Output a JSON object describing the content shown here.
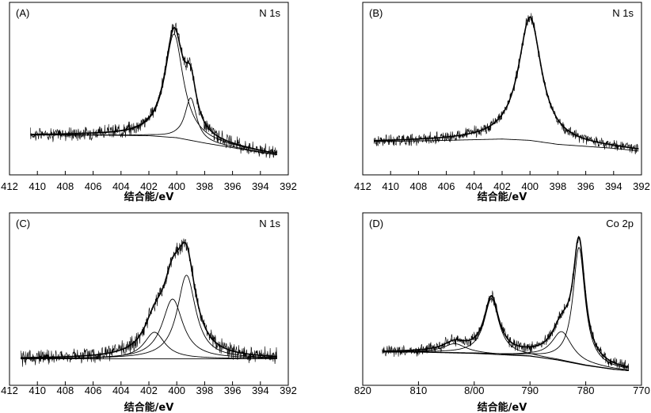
{
  "chart_data": [
    {
      "type": "line",
      "panel_label": "(A)",
      "title": "N 1s",
      "xlabel": "结合能/eV",
      "ylabel": "",
      "xlim": [
        412,
        392
      ],
      "xticks": [
        "412",
        "410",
        "408",
        "406",
        "404",
        "402",
        "400",
        "398",
        "396",
        "394",
        "392"
      ],
      "noise": 0.07,
      "data_range": [
        410.5,
        392.8
      ],
      "baseline": {
        "x": [
          410.5,
          406,
          402,
          400,
          398,
          394,
          392.8
        ],
        "y": [
          0.1,
          0.1,
          0.095,
          0.08,
          0.04,
          -0.03,
          -0.05
        ]
      },
      "series": [
        {
          "role": "component",
          "center": 400.2,
          "height": 0.78,
          "width": 0.8
        },
        {
          "role": "component",
          "center": 399.0,
          "height": 0.32,
          "width": 0.5
        }
      ],
      "ylim": [
        -0.2,
        1.1
      ]
    },
    {
      "type": "line",
      "panel_label": "(B)",
      "title": "N 1s",
      "xlabel": "结合能/eV",
      "ylabel": "",
      "xlim": [
        412,
        392
      ],
      "xticks": [
        "412",
        "410",
        "408",
        "406",
        "404",
        "402",
        "400",
        "398",
        "396",
        "394",
        "392"
      ],
      "noise": 0.06,
      "data_range": [
        411.2,
        392.2
      ],
      "baseline": {
        "x": [
          411.2,
          406,
          402,
          400,
          398,
          394,
          392.2
        ],
        "y": [
          0.05,
          0.06,
          0.07,
          0.06,
          0.03,
          0.0,
          -0.02
        ]
      },
      "series": [
        {
          "role": "component",
          "center": 400.0,
          "height": 0.93,
          "width": 1.0
        }
      ],
      "ylim": [
        -0.2,
        1.1
      ]
    },
    {
      "type": "line",
      "panel_label": "(C)",
      "title": "N 1s",
      "xlabel": "结合能/eV",
      "ylabel": "",
      "xlim": [
        412,
        392
      ],
      "xticks": [
        "412",
        "410",
        "408",
        "406",
        "404",
        "402",
        "400",
        "398",
        "396",
        "394",
        "392"
      ],
      "noise": 0.08,
      "data_range": [
        411.2,
        392.8
      ],
      "baseline": {
        "x": [
          411.2,
          406,
          402,
          400,
          398,
          394,
          392.8
        ],
        "y": [
          0.0,
          0.0,
          0.0,
          0.0,
          0.0,
          0.0,
          0.0
        ]
      },
      "series": [
        {
          "role": "component",
          "center": 401.6,
          "height": 0.2,
          "width": 0.9
        },
        {
          "role": "component",
          "center": 400.3,
          "height": 0.45,
          "width": 0.9
        },
        {
          "role": "component",
          "center": 399.3,
          "height": 0.63,
          "width": 0.8
        }
      ],
      "ylim": [
        -0.2,
        1.1
      ]
    },
    {
      "type": "line",
      "panel_label": "(D)",
      "title": "Co 2p",
      "xlabel": "结合能/eV",
      "ylabel": "",
      "xlim": [
        820,
        770
      ],
      "xticks": [
        "820",
        "810",
        "8/00",
        "790",
        "780",
        "770"
      ],
      "noise": 0.06,
      "data_range": [
        816.5,
        772.3
      ],
      "baseline": {
        "x": [
          816.5,
          810,
          800,
          790,
          785,
          780,
          775,
          772.3
        ],
        "y": [
          0.0,
          0.0,
          -0.01,
          -0.03,
          -0.06,
          -0.1,
          -0.13,
          -0.14
        ]
      },
      "series": [
        {
          "role": "component",
          "center": 796.9,
          "height": 0.42,
          "width": 1.6
        },
        {
          "role": "component",
          "center": 803.5,
          "height": 0.07,
          "width": 2.5
        },
        {
          "role": "component",
          "center": 784.3,
          "height": 0.22,
          "width": 2.2
        },
        {
          "role": "component",
          "center": 781.2,
          "height": 0.88,
          "width": 1.3
        }
      ],
      "ylim": [
        -0.25,
        1.05
      ]
    }
  ]
}
